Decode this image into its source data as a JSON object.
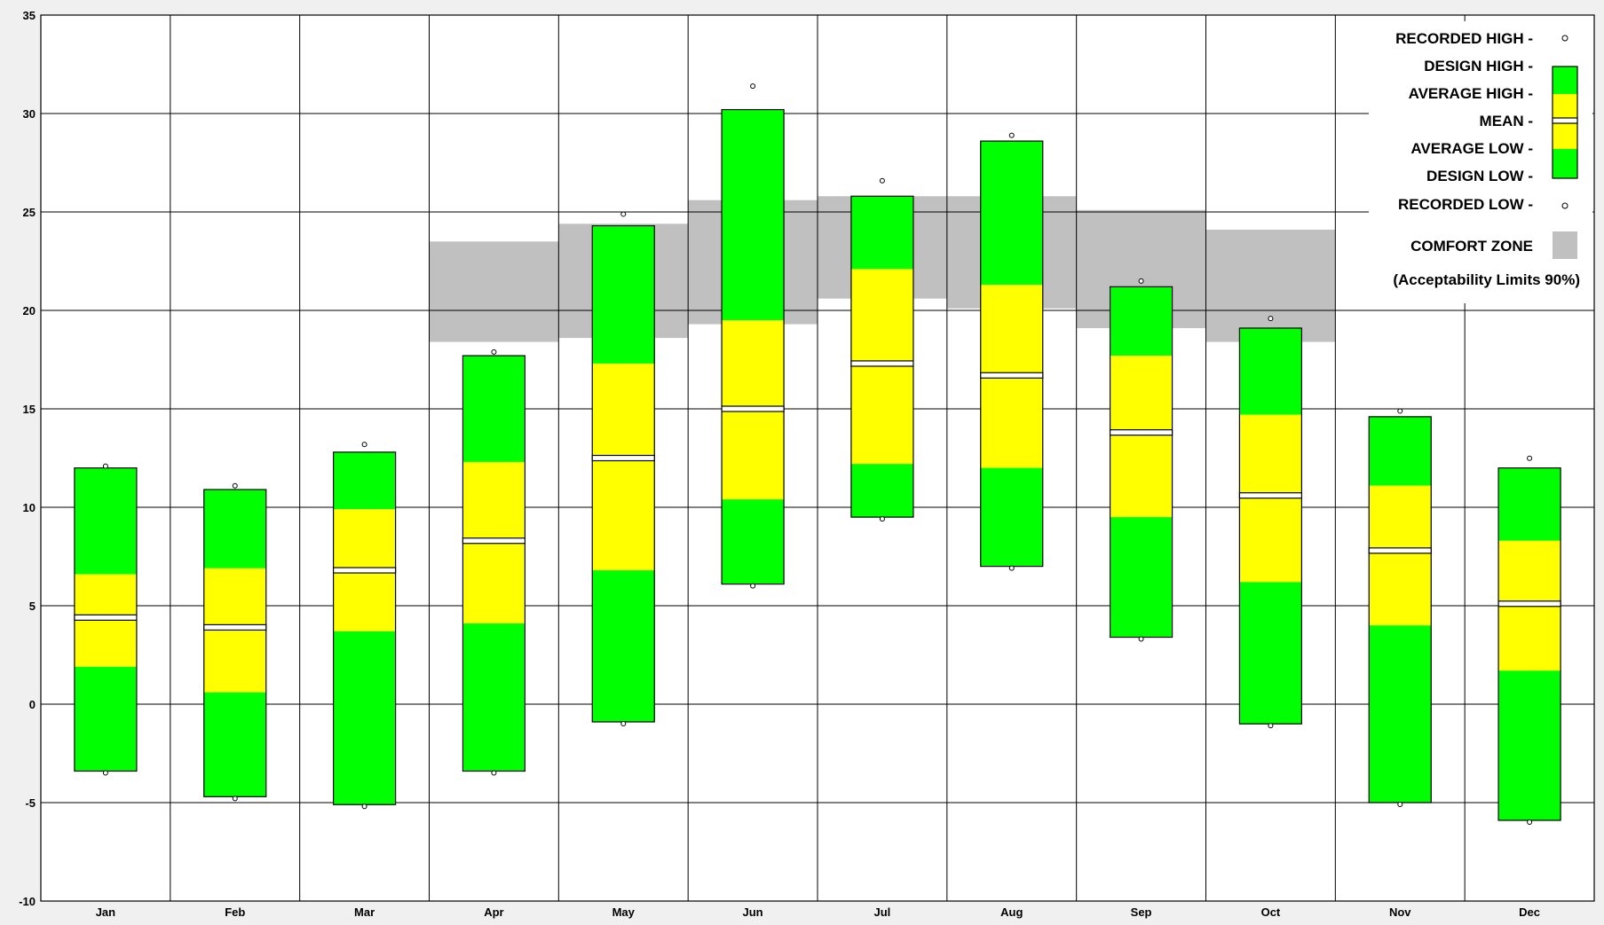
{
  "chart_data": {
    "type": "floating-bar",
    "title": "",
    "xlabel": "",
    "ylabel": "",
    "ylim": [
      -10,
      35
    ],
    "yticks": [
      -10,
      -5,
      0,
      5,
      10,
      15,
      20,
      25,
      30,
      35
    ],
    "grid": true,
    "legend_position": "top-right",
    "categories": [
      "Jan",
      "Feb",
      "Mar",
      "Apr",
      "May",
      "Jun",
      "Jul",
      "Aug",
      "Sep",
      "Oct",
      "Nov",
      "Dec"
    ],
    "series": [
      {
        "name": "RECORDED HIGH",
        "values": [
          12.0,
          11.0,
          13.1,
          17.8,
          24.8,
          31.3,
          26.5,
          28.8,
          21.4,
          19.5,
          14.8,
          12.4
        ]
      },
      {
        "name": "DESIGN HIGH",
        "values": [
          12.0,
          10.9,
          12.8,
          17.7,
          24.3,
          30.2,
          25.8,
          28.6,
          21.2,
          19.1,
          14.6,
          12.0
        ]
      },
      {
        "name": "AVERAGE HIGH",
        "values": [
          6.6,
          6.9,
          9.9,
          12.3,
          17.3,
          19.5,
          22.1,
          21.3,
          17.7,
          14.7,
          11.1,
          8.3
        ]
      },
      {
        "name": "MEAN",
        "values": [
          4.4,
          3.9,
          6.8,
          8.3,
          12.5,
          15.0,
          17.3,
          16.7,
          13.8,
          10.6,
          7.8,
          5.1
        ]
      },
      {
        "name": "AVERAGE LOW",
        "values": [
          1.9,
          0.6,
          3.7,
          4.1,
          6.8,
          10.4,
          12.2,
          12.0,
          9.5,
          6.2,
          4.0,
          1.7
        ]
      },
      {
        "name": "DESIGN LOW",
        "values": [
          -3.4,
          -4.7,
          -5.1,
          -3.4,
          -0.9,
          6.1,
          9.5,
          7.0,
          3.4,
          -1.0,
          -5.0,
          -5.9
        ]
      },
      {
        "name": "RECORDED LOW",
        "values": [
          -3.4,
          -4.7,
          -5.1,
          -3.4,
          -0.9,
          6.1,
          9.5,
          7.0,
          3.4,
          -1.0,
          -5.0,
          -5.9
        ]
      }
    ],
    "comfort_zone": {
      "name": "COMFORT ZONE",
      "low": [
        null,
        null,
        null,
        18.4,
        18.6,
        19.3,
        20.6,
        20.1,
        19.1,
        18.4,
        null,
        null
      ],
      "high": [
        null,
        null,
        null,
        23.5,
        24.4,
        25.6,
        25.8,
        25.8,
        25.1,
        24.1,
        null,
        null
      ]
    },
    "colors": {
      "design": "#00ff00",
      "average": "#ffff00",
      "mean": "#ffffff",
      "comfort": "#c0c0c0",
      "grid": "#000000",
      "background": "#ffffff"
    }
  },
  "legend": {
    "recorded_high": "RECORDED HIGH -",
    "design_high": "DESIGN HIGH -",
    "average_high": "AVERAGE HIGH -",
    "mean": "MEAN -",
    "average_low": "AVERAGE LOW -",
    "design_low": "DESIGN LOW -",
    "recorded_low": "RECORDED LOW -",
    "comfort_zone": "COMFORT ZONE",
    "acceptability": "(Acceptability Limits 90%)"
  }
}
